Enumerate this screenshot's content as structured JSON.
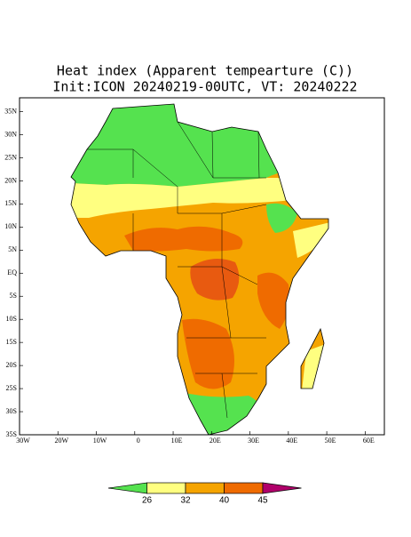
{
  "title": "Heat index (Apparent tempearture (C))",
  "subtitle": "Init:ICON 20240219-00UTC, VT: 20240222",
  "map": {
    "xlim": [
      -30,
      65
    ],
    "ylim": [
      -35,
      38
    ],
    "xticks": [
      {
        "value": -30,
        "label": "30W"
      },
      {
        "value": -20,
        "label": "20W"
      },
      {
        "value": -10,
        "label": "10W"
      },
      0,
      {
        "value": 10,
        "label": "10E"
      },
      {
        "value": 20,
        "label": "20E"
      },
      {
        "value": 30,
        "label": "30E"
      },
      {
        "value": 40,
        "label": "40E"
      },
      {
        "value": 50,
        "label": "50E"
      },
      {
        "value": 60,
        "label": "60E"
      }
    ],
    "yticks": [
      {
        "value": 35,
        "label": "35N"
      },
      {
        "value": 30,
        "label": "30N"
      },
      {
        "value": 25,
        "label": "25N"
      },
      {
        "value": 20,
        "label": "20N"
      },
      {
        "value": 15,
        "label": "15N"
      },
      {
        "value": 10,
        "label": "10N"
      },
      {
        "value": 5,
        "label": "5N"
      },
      {
        "value": 0,
        "label": "EQ"
      },
      {
        "value": -5,
        "label": "5S"
      },
      {
        "value": -10,
        "label": "10S"
      },
      {
        "value": -15,
        "label": "15S"
      },
      {
        "value": -20,
        "label": "20S"
      },
      {
        "value": -25,
        "label": "25S"
      },
      {
        "value": -30,
        "label": "30S"
      },
      {
        "value": -35,
        "label": "35S"
      }
    ]
  },
  "colorbar": {
    "levels": [
      26,
      32,
      40,
      45
    ],
    "colors": [
      "#55e24f",
      "#ffff80",
      "#f5a400",
      "#ef6b00",
      "#b0006a"
    ]
  }
}
